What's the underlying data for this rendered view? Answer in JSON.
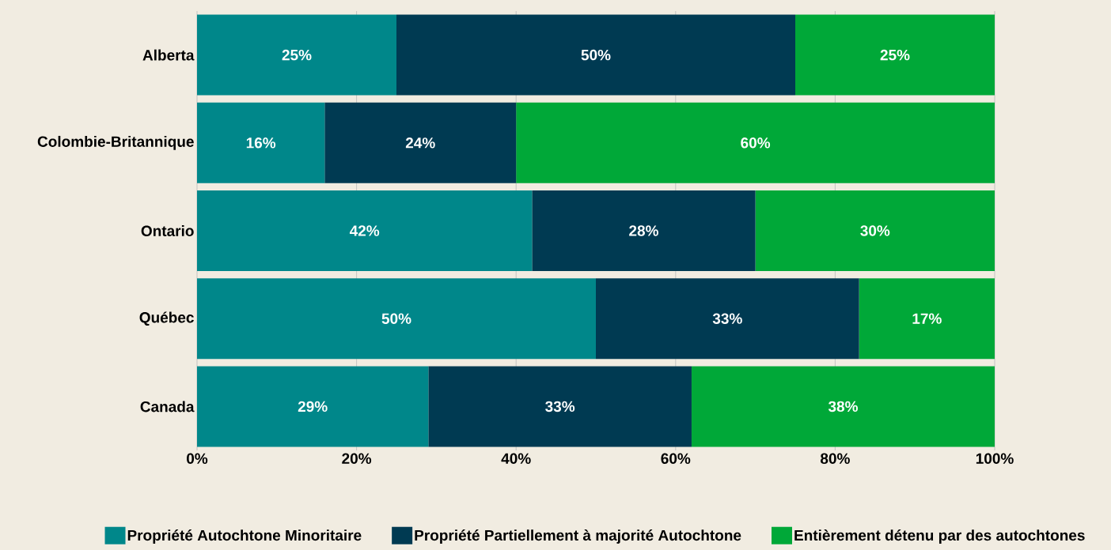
{
  "chart_data": {
    "type": "bar",
    "orientation": "horizontal",
    "stacked": true,
    "categories": [
      "Alberta",
      "Colombie-Britannique",
      "Ontario",
      "Québec",
      "Canada"
    ],
    "series": [
      {
        "name": "Propriété Autochtone Minoritaire",
        "color": "#00878a",
        "values": [
          25,
          16,
          42,
          50,
          29
        ],
        "value_labels": [
          "25%",
          "16%",
          "42%",
          "50%",
          "29%"
        ]
      },
      {
        "name": "Propriété Partiellement à majorité Autochtone",
        "color": "#003a52",
        "values": [
          50,
          24,
          28,
          33,
          33
        ],
        "value_labels": [
          "50%",
          "24%",
          "28%",
          "33%",
          "33%"
        ]
      },
      {
        "name": "Entièrement détenu par des autochtones",
        "color": "#00a838",
        "values": [
          25,
          60,
          30,
          17,
          38
        ],
        "value_labels": [
          "25%",
          "60%",
          "30%",
          "17%",
          "38%"
        ]
      }
    ],
    "xlim": [
      0,
      100
    ],
    "xticks": [
      {
        "value": 0,
        "label": "0%"
      },
      {
        "value": 20,
        "label": "20%"
      },
      {
        "value": 40,
        "label": "40%"
      },
      {
        "value": 60,
        "label": "60%"
      },
      {
        "value": 80,
        "label": "80%"
      },
      {
        "value": 100,
        "label": "100%"
      }
    ],
    "grid": "x",
    "legend": "bottom"
  }
}
